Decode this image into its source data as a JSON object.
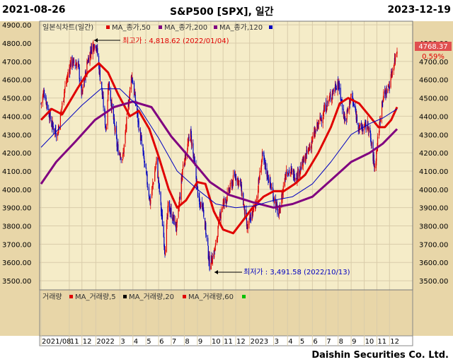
{
  "header": {
    "start_date": "2021-08-26",
    "title": "S&P500 [SPX], 일간",
    "end_date": "2023-12-19"
  },
  "footer": {
    "company": "Daishin Securities Co. Ltd."
  },
  "legend": {
    "label": "일본식차트(일간)",
    "items": [
      {
        "label": "MA_종가,50",
        "color": "#e00000"
      },
      {
        "label": "MA_종가,200",
        "color": "#800080"
      },
      {
        "label": "MA_종가,120",
        "color": "#0000c0"
      }
    ]
  },
  "volume_legend": {
    "label": "거래량",
    "items": [
      {
        "label": "MA_거래량,5",
        "color": "#000000"
      },
      {
        "label": "MA_거래량,20",
        "color": "#e00000"
      },
      {
        "label": "MA_거래량,60",
        "color": "#00c000"
      }
    ]
  },
  "annotations": {
    "high": {
      "text": "최고가 : 4,818.62 (2022/01/04)",
      "color": "#e00000"
    },
    "low": {
      "text": "최저가 : 3,491.58 (2022/10/13)",
      "color": "#0000c0"
    }
  },
  "current": {
    "price": "4768.37",
    "change": "0.59%"
  },
  "colors": {
    "plot_bg": "#f5ecc8",
    "panel_bg": "#e8d6a8",
    "up": "#e00000",
    "down": "#0000c0"
  },
  "chart_data": {
    "type": "candlestick",
    "ylim": [
      3450,
      4920
    ],
    "yticks_left": [
      "4900.00",
      "4800.00",
      "4700.00",
      "4600.00",
      "4500.00",
      "4400.00",
      "4300.00",
      "4200.00",
      "4100.00",
      "4000.00",
      "3900.00",
      "3800.00",
      "3700.00",
      "3600.00",
      "3500.00"
    ],
    "yticks_right": [
      "4800.00",
      "4700.00",
      "4600.00",
      "4500.00",
      "4400.00",
      "4300.00",
      "4200.00",
      "4100.00",
      "4000.00",
      "3900.00",
      "3800.00",
      "3700.00",
      "3600.00",
      "3500.00"
    ],
    "xtick_labels": [
      "2021/08",
      "11",
      "12",
      "2022",
      "3",
      "4",
      "5",
      "6",
      "7",
      "8",
      "9",
      "10",
      "11",
      "12",
      "2023",
      "3",
      "4",
      "5",
      "6",
      "7",
      "8",
      "9",
      "10",
      "11",
      "12"
    ],
    "x_start": "2021-08-26",
    "x_end": "2023-12-19",
    "xtick_dates": [
      "2021-08-26",
      "2021-11-01",
      "2021-12-01",
      "2022-01-03",
      "2022-03-01",
      "2022-04-01",
      "2022-05-02",
      "2022-06-01",
      "2022-07-01",
      "2022-08-01",
      "2022-09-01",
      "2022-10-03",
      "2022-11-01",
      "2022-12-01",
      "2023-01-03",
      "2023-03-01",
      "2023-04-03",
      "2023-05-01",
      "2023-06-01",
      "2023-07-03",
      "2023-08-01",
      "2023-09-01",
      "2023-10-02",
      "2023-11-01",
      "2023-12-01"
    ],
    "price_path": [
      [
        "2021-08-26",
        4470
      ],
      [
        "2021-09-02",
        4537
      ],
      [
        "2021-09-20",
        4358
      ],
      [
        "2021-10-04",
        4300
      ],
      [
        "2021-10-20",
        4536
      ],
      [
        "2021-11-05",
        4697
      ],
      [
        "2021-11-22",
        4682
      ],
      [
        "2021-12-01",
        4513
      ],
      [
        "2021-12-15",
        4709
      ],
      [
        "2021-12-27",
        4791
      ],
      [
        "2022-01-04",
        4793
      ],
      [
        "2022-01-20",
        4482
      ],
      [
        "2022-01-27",
        4327
      ],
      [
        "2022-02-02",
        4589
      ],
      [
        "2022-02-23",
        4225
      ],
      [
        "2022-03-08",
        4170
      ],
      [
        "2022-03-29",
        4631
      ],
      [
        "2022-04-12",
        4397
      ],
      [
        "2022-04-29",
        4132
      ],
      [
        "2022-05-12",
        3930
      ],
      [
        "2022-05-27",
        4158
      ],
      [
        "2022-06-16",
        3667
      ],
      [
        "2022-06-24",
        3912
      ],
      [
        "2022-07-14",
        3790
      ],
      [
        "2022-07-29",
        4130
      ],
      [
        "2022-08-16",
        4305
      ],
      [
        "2022-09-06",
        3908
      ],
      [
        "2022-09-13",
        3932
      ],
      [
        "2022-09-30",
        3586
      ],
      [
        "2022-10-13",
        3670
      ],
      [
        "2022-10-28",
        3901
      ],
      [
        "2022-11-10",
        3956
      ],
      [
        "2022-11-30",
        4080
      ],
      [
        "2022-12-13",
        4019
      ],
      [
        "2022-12-28",
        3783
      ],
      [
        "2023-01-18",
        3929
      ],
      [
        "2023-02-02",
        4179
      ],
      [
        "2023-02-28",
        3970
      ],
      [
        "2023-03-13",
        3855
      ],
      [
        "2023-03-31",
        4109
      ],
      [
        "2023-04-25",
        4071
      ],
      [
        "2023-05-19",
        4192
      ],
      [
        "2023-06-12",
        4338
      ],
      [
        "2023-07-03",
        4455
      ],
      [
        "2023-07-31",
        4589
      ],
      [
        "2023-08-18",
        4370
      ],
      [
        "2023-09-01",
        4515
      ],
      [
        "2023-09-21",
        4330
      ],
      [
        "2023-10-12",
        4349
      ],
      [
        "2023-10-27",
        4117
      ],
      [
        "2023-11-14",
        4495
      ],
      [
        "2023-11-30",
        4567
      ],
      [
        "2023-12-13",
        4707
      ],
      [
        "2023-12-19",
        4768
      ]
    ],
    "series": [
      {
        "name": "MA_종가,50",
        "color": "#e00000",
        "points": [
          [
            "2021-08-26",
            4380
          ],
          [
            "2021-09-20",
            4440
          ],
          [
            "2021-10-15",
            4410
          ],
          [
            "2021-11-20",
            4550
          ],
          [
            "2021-12-15",
            4640
          ],
          [
            "2022-01-10",
            4690
          ],
          [
            "2022-02-01",
            4640
          ],
          [
            "2022-02-25",
            4520
          ],
          [
            "2022-03-25",
            4400
          ],
          [
            "2022-04-15",
            4430
          ],
          [
            "2022-05-10",
            4330
          ],
          [
            "2022-06-01",
            4180
          ],
          [
            "2022-06-25",
            4000
          ],
          [
            "2022-07-15",
            3900
          ],
          [
            "2022-08-05",
            3940
          ],
          [
            "2022-09-01",
            4040
          ],
          [
            "2022-09-20",
            4030
          ],
          [
            "2022-10-10",
            3880
          ],
          [
            "2022-11-01",
            3780
          ],
          [
            "2022-11-25",
            3760
          ],
          [
            "2022-12-15",
            3820
          ],
          [
            "2023-01-10",
            3900
          ],
          [
            "2023-02-05",
            3960
          ],
          [
            "2023-03-01",
            3990
          ],
          [
            "2023-03-25",
            3990
          ],
          [
            "2023-04-20",
            4030
          ],
          [
            "2023-05-15",
            4080
          ],
          [
            "2023-06-15",
            4200
          ],
          [
            "2023-07-15",
            4340
          ],
          [
            "2023-08-05",
            4470
          ],
          [
            "2023-08-25",
            4500
          ],
          [
            "2023-09-20",
            4470
          ],
          [
            "2023-10-15",
            4400
          ],
          [
            "2023-11-05",
            4340
          ],
          [
            "2023-11-20",
            4340
          ],
          [
            "2023-12-05",
            4380
          ],
          [
            "2023-12-19",
            4450
          ]
        ]
      },
      {
        "name": "MA_종가,200",
        "color": "#800080",
        "points": [
          [
            "2021-08-26",
            4030
          ],
          [
            "2021-10-01",
            4150
          ],
          [
            "2021-11-15",
            4260
          ],
          [
            "2022-01-01",
            4380
          ],
          [
            "2022-02-15",
            4450
          ],
          [
            "2022-04-01",
            4480
          ],
          [
            "2022-05-15",
            4450
          ],
          [
            "2022-07-01",
            4290
          ],
          [
            "2022-08-15",
            4170
          ],
          [
            "2022-10-01",
            4040
          ],
          [
            "2022-11-15",
            3970
          ],
          [
            "2023-01-10",
            3930
          ],
          [
            "2023-03-01",
            3900
          ],
          [
            "2023-04-15",
            3920
          ],
          [
            "2023-06-01",
            3960
          ],
          [
            "2023-07-15",
            4050
          ],
          [
            "2023-09-01",
            4150
          ],
          [
            "2023-10-15",
            4200
          ],
          [
            "2023-11-15",
            4250
          ],
          [
            "2023-12-19",
            4330
          ]
        ]
      },
      {
        "name": "MA_종가,120",
        "color": "#0000c0",
        "points": [
          [
            "2021-08-26",
            4230
          ],
          [
            "2021-10-15",
            4350
          ],
          [
            "2021-12-01",
            4460
          ],
          [
            "2022-01-15",
            4550
          ],
          [
            "2022-03-01",
            4550
          ],
          [
            "2022-04-15",
            4450
          ],
          [
            "2022-06-01",
            4280
          ],
          [
            "2022-07-15",
            4100
          ],
          [
            "2022-09-01",
            4000
          ],
          [
            "2022-10-15",
            3920
          ],
          [
            "2022-12-01",
            3900
          ],
          [
            "2023-01-15",
            3910
          ],
          [
            "2023-03-01",
            3940
          ],
          [
            "2023-04-15",
            3960
          ],
          [
            "2023-06-01",
            4030
          ],
          [
            "2023-07-15",
            4150
          ],
          [
            "2023-09-01",
            4300
          ],
          [
            "2023-10-15",
            4360
          ],
          [
            "2023-11-15",
            4390
          ],
          [
            "2023-12-19",
            4440
          ]
        ]
      }
    ]
  }
}
